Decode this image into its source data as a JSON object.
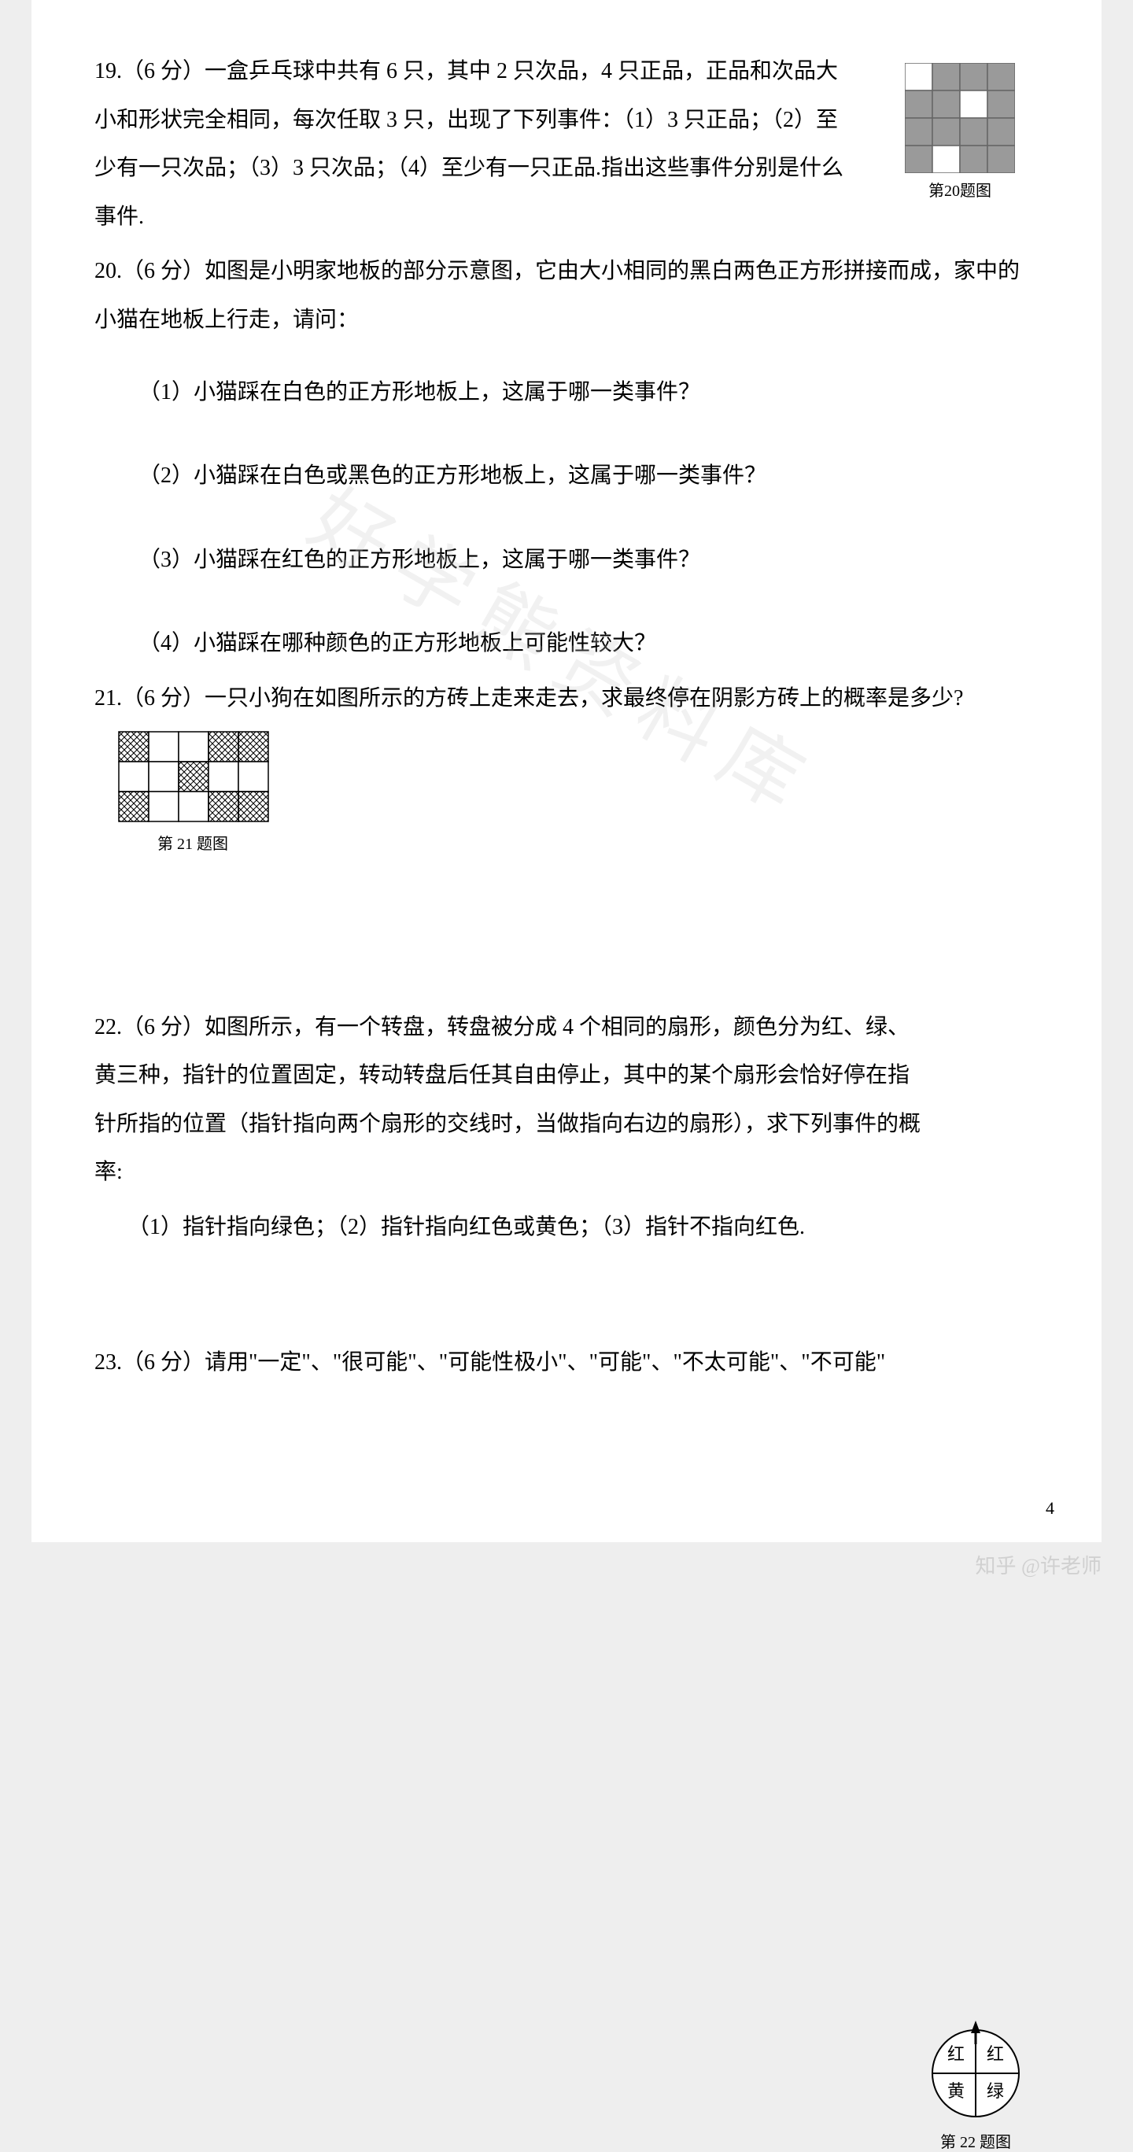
{
  "watermark_text": "好学熊资料库",
  "page_number": "4",
  "footer_author": "知乎 @许老师",
  "q19": {
    "text": "19.（6 分）一盒乒乓球中共有 6 只，其中 2 只次品，4 只正品，正品和次品大小和形状完全相同，每次任取 3 只，出现了下列事件：（1）3 只正品；（2）至少有一只次品；（3）3 只次品；（4）至少有一只正品.指出这些事件分别是什么事件."
  },
  "q20": {
    "stem": "20.（6 分）如图是小明家地板的部分示意图，它由大小相同的黑白两色正方形拼接而成，家中的小猫在地板上行走，请问：",
    "s1": "（1）小猫踩在白色的正方形地板上，这属于哪一类事件？",
    "s2": "（2）小猫踩在白色或黑色的正方形地板上，这属于哪一类事件？",
    "s3": "（3）小猫踩在红色的正方形地板上，这属于哪一类事件？",
    "s4": "（4）小猫踩在哪种颜色的正方形地板上可能性较大？",
    "fig_label": "第20题图",
    "grid": {
      "rows": 4,
      "cols": 4,
      "cell": 35,
      "fill_dark": "#9a9a9a",
      "fill_light": "#ffffff",
      "stroke": "#666666",
      "white_cells": [
        [
          0,
          0
        ],
        [
          1,
          2
        ],
        [
          3,
          1
        ]
      ]
    }
  },
  "q21": {
    "text": "21.（6 分）一只小狗在如图所示的方砖上走来走去，求最终停在阴影方砖上的概率是多少?",
    "fig_label": "第 21 题图",
    "grid": {
      "rows": 3,
      "cols": 5,
      "cell": 38,
      "stroke": "#000000",
      "hatched_cells": [
        [
          0,
          0
        ],
        [
          0,
          3
        ],
        [
          0,
          4
        ],
        [
          1,
          2
        ],
        [
          2,
          0
        ],
        [
          2,
          3
        ],
        [
          2,
          4
        ]
      ]
    }
  },
  "q22": {
    "stem": "22.（6 分）如图所示，有一个转盘，转盘被分成 4 个相同的扇形，颜色分为红、绿、黄三种，指针的位置固定，转动转盘后任其自由停止，其中的某个扇形会恰好停在指针所指的位置（指针指向两个扇形的交线时，当做指向右边的扇形），求下列事件的概率:",
    "sub": "（1）指针指向绿色；（2）指针指向红色或黄色；（3）指针不指向红色.",
    "fig_label": "第 22 题图",
    "spinner": {
      "radius": 55,
      "labels": {
        "tl": "红",
        "tr": "红",
        "bl": "黄",
        "br": "绿"
      },
      "stroke": "#000000"
    }
  },
  "q23": {
    "text": "23.（6 分）请用\"一定\"、\"很可能\"、\"可能性极小\"、\"可能\"、\"不太可能\"、\"不可能\""
  }
}
